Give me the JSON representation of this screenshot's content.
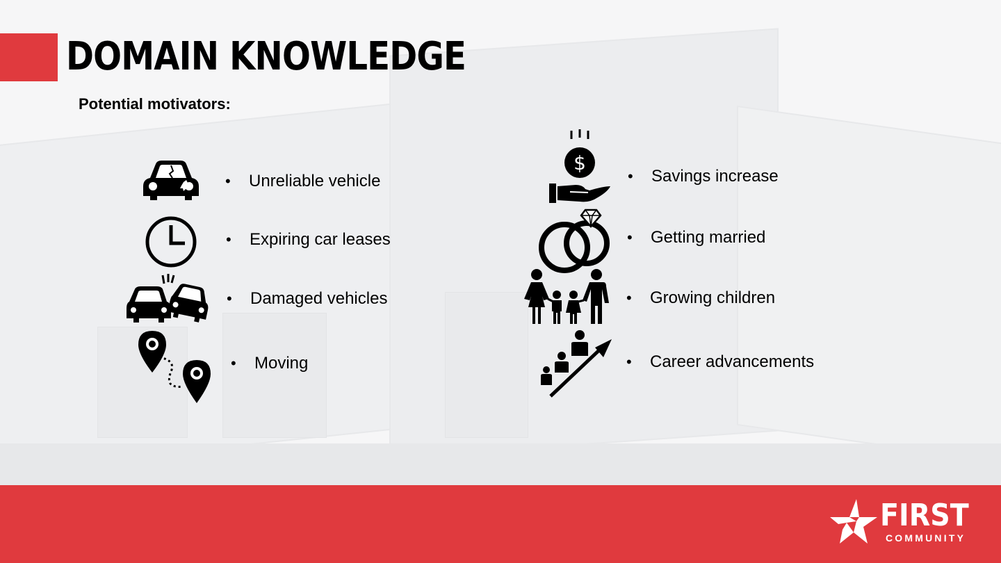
{
  "slide": {
    "title": "DOMAIN KNOWLEDGE",
    "subtitle": "Potential motivators:",
    "bullet": "•",
    "accent_color": "#e03a3e",
    "left_items": [
      {
        "label": "Unreliable vehicle",
        "icon": "broken-car-icon"
      },
      {
        "label": "Expiring car leases",
        "icon": "clock-icon"
      },
      {
        "label": "Damaged vehicles",
        "icon": "car-crash-icon"
      },
      {
        "label": "Moving",
        "icon": "map-route-icon"
      }
    ],
    "right_items": [
      {
        "label": "Savings increase",
        "icon": "coin-in-hand-icon"
      },
      {
        "label": "Getting married",
        "icon": "wedding-rings-icon"
      },
      {
        "label": "Growing children",
        "icon": "family-icon"
      },
      {
        "label": "Career advancements",
        "icon": "career-growth-icon"
      }
    ]
  },
  "footer": {
    "logo_top": "FIRST",
    "logo_bottom": "COMMUNITY",
    "logo_icon": "star-logo-icon"
  }
}
